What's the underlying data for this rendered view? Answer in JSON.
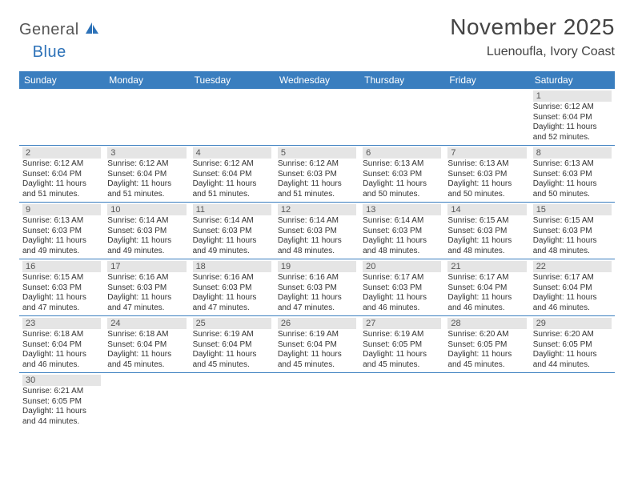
{
  "logo": {
    "part1": "General",
    "part2": "Blue"
  },
  "title": "November 2025",
  "location": "Luenoufla, Ivory Coast",
  "colors": {
    "header_bg": "#3a7ebf",
    "header_text": "#ffffff",
    "daynum_bg": "#e5e5e5",
    "border": "#3a7ebf",
    "logo_blue": "#2d72b8",
    "logo_gray": "#555555"
  },
  "weekdays": [
    "Sunday",
    "Monday",
    "Tuesday",
    "Wednesday",
    "Thursday",
    "Friday",
    "Saturday"
  ],
  "weeks": [
    [
      null,
      null,
      null,
      null,
      null,
      null,
      {
        "day": "1",
        "sunrise": "Sunrise: 6:12 AM",
        "sunset": "Sunset: 6:04 PM",
        "daylight1": "Daylight: 11 hours",
        "daylight2": "and 52 minutes."
      }
    ],
    [
      {
        "day": "2",
        "sunrise": "Sunrise: 6:12 AM",
        "sunset": "Sunset: 6:04 PM",
        "daylight1": "Daylight: 11 hours",
        "daylight2": "and 51 minutes."
      },
      {
        "day": "3",
        "sunrise": "Sunrise: 6:12 AM",
        "sunset": "Sunset: 6:04 PM",
        "daylight1": "Daylight: 11 hours",
        "daylight2": "and 51 minutes."
      },
      {
        "day": "4",
        "sunrise": "Sunrise: 6:12 AM",
        "sunset": "Sunset: 6:04 PM",
        "daylight1": "Daylight: 11 hours",
        "daylight2": "and 51 minutes."
      },
      {
        "day": "5",
        "sunrise": "Sunrise: 6:12 AM",
        "sunset": "Sunset: 6:03 PM",
        "daylight1": "Daylight: 11 hours",
        "daylight2": "and 51 minutes."
      },
      {
        "day": "6",
        "sunrise": "Sunrise: 6:13 AM",
        "sunset": "Sunset: 6:03 PM",
        "daylight1": "Daylight: 11 hours",
        "daylight2": "and 50 minutes."
      },
      {
        "day": "7",
        "sunrise": "Sunrise: 6:13 AM",
        "sunset": "Sunset: 6:03 PM",
        "daylight1": "Daylight: 11 hours",
        "daylight2": "and 50 minutes."
      },
      {
        "day": "8",
        "sunrise": "Sunrise: 6:13 AM",
        "sunset": "Sunset: 6:03 PM",
        "daylight1": "Daylight: 11 hours",
        "daylight2": "and 50 minutes."
      }
    ],
    [
      {
        "day": "9",
        "sunrise": "Sunrise: 6:13 AM",
        "sunset": "Sunset: 6:03 PM",
        "daylight1": "Daylight: 11 hours",
        "daylight2": "and 49 minutes."
      },
      {
        "day": "10",
        "sunrise": "Sunrise: 6:14 AM",
        "sunset": "Sunset: 6:03 PM",
        "daylight1": "Daylight: 11 hours",
        "daylight2": "and 49 minutes."
      },
      {
        "day": "11",
        "sunrise": "Sunrise: 6:14 AM",
        "sunset": "Sunset: 6:03 PM",
        "daylight1": "Daylight: 11 hours",
        "daylight2": "and 49 minutes."
      },
      {
        "day": "12",
        "sunrise": "Sunrise: 6:14 AM",
        "sunset": "Sunset: 6:03 PM",
        "daylight1": "Daylight: 11 hours",
        "daylight2": "and 48 minutes."
      },
      {
        "day": "13",
        "sunrise": "Sunrise: 6:14 AM",
        "sunset": "Sunset: 6:03 PM",
        "daylight1": "Daylight: 11 hours",
        "daylight2": "and 48 minutes."
      },
      {
        "day": "14",
        "sunrise": "Sunrise: 6:15 AM",
        "sunset": "Sunset: 6:03 PM",
        "daylight1": "Daylight: 11 hours",
        "daylight2": "and 48 minutes."
      },
      {
        "day": "15",
        "sunrise": "Sunrise: 6:15 AM",
        "sunset": "Sunset: 6:03 PM",
        "daylight1": "Daylight: 11 hours",
        "daylight2": "and 48 minutes."
      }
    ],
    [
      {
        "day": "16",
        "sunrise": "Sunrise: 6:15 AM",
        "sunset": "Sunset: 6:03 PM",
        "daylight1": "Daylight: 11 hours",
        "daylight2": "and 47 minutes."
      },
      {
        "day": "17",
        "sunrise": "Sunrise: 6:16 AM",
        "sunset": "Sunset: 6:03 PM",
        "daylight1": "Daylight: 11 hours",
        "daylight2": "and 47 minutes."
      },
      {
        "day": "18",
        "sunrise": "Sunrise: 6:16 AM",
        "sunset": "Sunset: 6:03 PM",
        "daylight1": "Daylight: 11 hours",
        "daylight2": "and 47 minutes."
      },
      {
        "day": "19",
        "sunrise": "Sunrise: 6:16 AM",
        "sunset": "Sunset: 6:03 PM",
        "daylight1": "Daylight: 11 hours",
        "daylight2": "and 47 minutes."
      },
      {
        "day": "20",
        "sunrise": "Sunrise: 6:17 AM",
        "sunset": "Sunset: 6:03 PM",
        "daylight1": "Daylight: 11 hours",
        "daylight2": "and 46 minutes."
      },
      {
        "day": "21",
        "sunrise": "Sunrise: 6:17 AM",
        "sunset": "Sunset: 6:04 PM",
        "daylight1": "Daylight: 11 hours",
        "daylight2": "and 46 minutes."
      },
      {
        "day": "22",
        "sunrise": "Sunrise: 6:17 AM",
        "sunset": "Sunset: 6:04 PM",
        "daylight1": "Daylight: 11 hours",
        "daylight2": "and 46 minutes."
      }
    ],
    [
      {
        "day": "23",
        "sunrise": "Sunrise: 6:18 AM",
        "sunset": "Sunset: 6:04 PM",
        "daylight1": "Daylight: 11 hours",
        "daylight2": "and 46 minutes."
      },
      {
        "day": "24",
        "sunrise": "Sunrise: 6:18 AM",
        "sunset": "Sunset: 6:04 PM",
        "daylight1": "Daylight: 11 hours",
        "daylight2": "and 45 minutes."
      },
      {
        "day": "25",
        "sunrise": "Sunrise: 6:19 AM",
        "sunset": "Sunset: 6:04 PM",
        "daylight1": "Daylight: 11 hours",
        "daylight2": "and 45 minutes."
      },
      {
        "day": "26",
        "sunrise": "Sunrise: 6:19 AM",
        "sunset": "Sunset: 6:04 PM",
        "daylight1": "Daylight: 11 hours",
        "daylight2": "and 45 minutes."
      },
      {
        "day": "27",
        "sunrise": "Sunrise: 6:19 AM",
        "sunset": "Sunset: 6:05 PM",
        "daylight1": "Daylight: 11 hours",
        "daylight2": "and 45 minutes."
      },
      {
        "day": "28",
        "sunrise": "Sunrise: 6:20 AM",
        "sunset": "Sunset: 6:05 PM",
        "daylight1": "Daylight: 11 hours",
        "daylight2": "and 45 minutes."
      },
      {
        "day": "29",
        "sunrise": "Sunrise: 6:20 AM",
        "sunset": "Sunset: 6:05 PM",
        "daylight1": "Daylight: 11 hours",
        "daylight2": "and 44 minutes."
      }
    ],
    [
      {
        "day": "30",
        "sunrise": "Sunrise: 6:21 AM",
        "sunset": "Sunset: 6:05 PM",
        "daylight1": "Daylight: 11 hours",
        "daylight2": "and 44 minutes."
      },
      null,
      null,
      null,
      null,
      null,
      null
    ]
  ]
}
